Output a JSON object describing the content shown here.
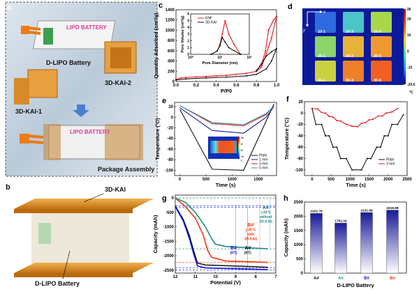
{
  "panels": {
    "a": {
      "letter": "a",
      "battery_label": "LIPO BATTERY",
      "battery_label_2": "LIPO BATTERY",
      "d_lipo": "D-LIPO Battery",
      "kai1": "3D-KAI-1",
      "kai2": "3D-KAI-2",
      "package": "Package Assembly"
    },
    "b": {
      "letter": "b",
      "kai": "3D-KAI",
      "d_lipo": "D-LIPO Battery"
    },
    "c": {
      "letter": "c"
    },
    "d": {
      "letter": "d",
      "axis_x": "x",
      "axis_y": "y",
      "samples": [
        {
          "label": "10-1",
          "color": "#2f6be0"
        },
        {
          "label": "10-3",
          "color": "#4cc4c8"
        },
        {
          "label": "10-5",
          "color": "#a8d84a"
        },
        {
          "label": "20-1",
          "color": "#8cd46a"
        },
        {
          "label": "20-3",
          "color": "#e6b23a"
        },
        {
          "label": "20-5",
          "color": "#ef9a30"
        },
        {
          "label": "30-1",
          "color": "#c9d23e"
        },
        {
          "label": "30-3",
          "color": "#f08028"
        },
        {
          "label": "30-5",
          "color": "#f06020"
        }
      ],
      "colorbar_ticks": [
        "26",
        "20",
        "10",
        "0",
        "-10",
        "-20.5"
      ],
      "colorbar_unit": "°C"
    },
    "e": {
      "letter": "e",
      "inset_ticks": [
        "-55",
        "30",
        "25",
        "-19"
      ],
      "inset_unit": "°C"
    },
    "f": {
      "letter": "f"
    },
    "g": {
      "letter": "g"
    },
    "h": {
      "letter": "h"
    }
  },
  "chart_data": [
    {
      "id": "c",
      "type": "line",
      "xlabel": "P/P0",
      "ylabel": "Quantity Adsorbed (cm³/g)",
      "xlim": [
        0,
        1.0
      ],
      "ylim": [
        0,
        1400
      ],
      "xticks": [
        "0.0",
        "0.2",
        "0.4",
        "0.6",
        "0.8",
        "1.0"
      ],
      "xtick_values": [
        0,
        0.2,
        0.4,
        0.6,
        0.8,
        1.0
      ],
      "yticks": [
        "0",
        "200",
        "400",
        "600",
        "800",
        "1000",
        "1200",
        "1400"
      ],
      "ytick_values": [
        0,
        200,
        400,
        600,
        800,
        1000,
        1200,
        1400
      ],
      "series": [
        {
          "color": "#e8141c",
          "points": [
            [
              0,
              40
            ],
            [
              0.05,
              70
            ],
            [
              0.1,
              80
            ],
            [
              0.2,
              90
            ],
            [
              0.3,
              100
            ],
            [
              0.4,
              110
            ],
            [
              0.5,
              120
            ],
            [
              0.6,
              140
            ],
            [
              0.7,
              160
            ],
            [
              0.8,
              200
            ],
            [
              0.85,
              280
            ],
            [
              0.9,
              550
            ],
            [
              0.95,
              850
            ],
            [
              1.0,
              1270
            ]
          ]
        },
        {
          "color": "#e8141c",
          "points": [
            [
              1.0,
              1270
            ],
            [
              0.97,
              1200
            ],
            [
              0.92,
              1000
            ],
            [
              0.89,
              600
            ],
            [
              0.85,
              320
            ],
            [
              0.8,
              220
            ]
          ]
        },
        {
          "color": "#111111",
          "points": [
            [
              0,
              30
            ],
            [
              0.1,
              50
            ],
            [
              0.3,
              70
            ],
            [
              0.5,
              85
            ],
            [
              0.7,
              110
            ],
            [
              0.8,
              140
            ],
            [
              0.9,
              250
            ],
            [
              0.95,
              400
            ],
            [
              1.0,
              640
            ]
          ]
        },
        {
          "color": "#111111",
          "points": [
            [
              1.0,
              640
            ],
            [
              0.95,
              580
            ],
            [
              0.9,
              500
            ],
            [
              0.85,
              350
            ],
            [
              0.8,
              200
            ]
          ]
        }
      ],
      "inset": {
        "type": "line",
        "xlabel": "Pore Diameter (nm)",
        "ylabel": "Pore Volume (cm³/g)",
        "xscale": "log",
        "xlim": [
          1,
          100
        ],
        "ylim": [
          0,
          6
        ],
        "xticks": [
          "10⁰",
          "10¹",
          "10²"
        ],
        "xtick_values": [
          1,
          10,
          100
        ],
        "yticks": [
          "0",
          "1",
          "2",
          "3",
          "4",
          "5",
          "6"
        ],
        "ytick_values": [
          0,
          1,
          2,
          3,
          4,
          5,
          6
        ],
        "legend": "top-left",
        "series": [
          {
            "name": "KNF",
            "color": "#e8141c",
            "points": [
              [
                5,
                0
              ],
              [
                8,
                0.5
              ],
              [
                10,
                1.5
              ],
              [
                12,
                3
              ],
              [
                15,
                5
              ],
              [
                20,
                3
              ],
              [
                30,
                1.5
              ],
              [
                50,
                0
              ]
            ]
          },
          {
            "name": "3D-KAI",
            "color": "#111111",
            "points": [
              [
                5,
                0
              ],
              [
                8,
                0.5
              ],
              [
                10,
                1.3
              ],
              [
                12,
                2.5
              ],
              [
                15,
                1.8
              ],
              [
                20,
                1
              ],
              [
                50,
                0
              ]
            ]
          }
        ]
      }
    },
    {
      "id": "e",
      "type": "line",
      "xlabel": "Time (s)",
      "ylabel": "Temperature (°C)",
      "xlim": [
        -100,
        1850
      ],
      "ylim": [
        -110,
        28
      ],
      "xticks": [
        "0",
        "500",
        "1000",
        "1500"
      ],
      "xtick_values": [
        0,
        500,
        1000,
        1500
      ],
      "yticks": [
        "20",
        "0",
        "-20",
        "-40",
        "-60",
        "-80",
        "-100"
      ],
      "ytick_values": [
        20,
        0,
        -20,
        -40,
        -60,
        -80,
        -100
      ],
      "legend": "bottom-right",
      "series": [
        {
          "name": "Plate",
          "color": "#111111",
          "points": [
            [
              0,
              15
            ],
            [
              620,
              -98
            ],
            [
              1220,
              -100
            ],
            [
              1800,
              25
            ]
          ]
        },
        {
          "name": "1 mm",
          "color": "#1a1aa8",
          "points": [
            [
              0,
              18
            ],
            [
              620,
              -25
            ],
            [
              1220,
              -30
            ],
            [
              1650,
              0
            ],
            [
              1800,
              20
            ]
          ]
        },
        {
          "name": "3 mm",
          "color": "#e8141c",
          "points": [
            [
              0,
              22
            ],
            [
              620,
              -12
            ],
            [
              1220,
              -16
            ],
            [
              1650,
              5
            ],
            [
              1800,
              22
            ]
          ]
        },
        {
          "name": "5 mm",
          "color": "#1f9a9a",
          "points": [
            [
              0,
              22
            ],
            [
              620,
              -10
            ],
            [
              1220,
              -14
            ],
            [
              1650,
              7
            ],
            [
              1800,
              20
            ]
          ]
        }
      ]
    },
    {
      "id": "f",
      "type": "line",
      "xlabel": "Time (s)",
      "ylabel": "Temperature (°C)",
      "xlim": [
        -200,
        2500
      ],
      "ylim": [
        -110,
        20
      ],
      "xticks": [
        "0",
        "500",
        "1000",
        "1500",
        "2000",
        "2500"
      ],
      "xtick_values": [
        0,
        500,
        1000,
        1500,
        2000,
        2500
      ],
      "yticks": [
        "20",
        "0",
        "-20",
        "-40",
        "-60",
        "-80",
        "-100"
      ],
      "ytick_values": [
        20,
        0,
        -20,
        -40,
        -60,
        -80,
        -100
      ],
      "legend": "bottom-right",
      "series": [
        {
          "name": "Plate",
          "color": "#111111",
          "points": [
            [
              0,
              8
            ],
            [
              100,
              -20
            ],
            [
              250,
              -20
            ],
            [
              350,
              -40
            ],
            [
              450,
              -40
            ],
            [
              550,
              -60
            ],
            [
              650,
              -60
            ],
            [
              750,
              -80
            ],
            [
              900,
              -80
            ],
            [
              1050,
              -100
            ],
            [
              1300,
              -100
            ],
            [
              1450,
              -80
            ],
            [
              1550,
              -80
            ],
            [
              1700,
              -60
            ],
            [
              1800,
              -60
            ],
            [
              1900,
              -40
            ],
            [
              2000,
              -40
            ],
            [
              2100,
              -20
            ],
            [
              2250,
              -20
            ],
            [
              2400,
              -3
            ]
          ]
        },
        {
          "name": "3 mm",
          "color": "#e8141c",
          "points": [
            [
              0,
              8
            ],
            [
              150,
              7
            ],
            [
              250,
              1
            ],
            [
              350,
              0
            ],
            [
              450,
              -6
            ],
            [
              550,
              -7
            ],
            [
              650,
              -13
            ],
            [
              750,
              -14
            ],
            [
              900,
              -20
            ],
            [
              1050,
              -23
            ],
            [
              1200,
              -24
            ],
            [
              1300,
              -18
            ],
            [
              1400,
              -17
            ],
            [
              1500,
              -12
            ],
            [
              1600,
              -11
            ],
            [
              1750,
              -5
            ],
            [
              1850,
              -5
            ],
            [
              1950,
              0
            ],
            [
              2100,
              2
            ],
            [
              2250,
              8
            ]
          ]
        }
      ]
    },
    {
      "id": "g",
      "type": "line",
      "xlabel": "Potential (V)",
      "ylabel": "Capacity (mAh)",
      "xlim": [
        12,
        7
      ],
      "ylim": [
        -2600,
        100
      ],
      "xticks": [
        "12",
        "11",
        "10",
        "9",
        "8",
        "7"
      ],
      "xtick_values": [
        12,
        11,
        10,
        9,
        8,
        7
      ],
      "yticks": [
        "0",
        "-500",
        "-1000",
        "-1500",
        "-2000",
        "-2500"
      ],
      "ytick_values": [
        0,
        -500,
        -1000,
        -1500,
        -2000,
        -2500
      ],
      "series": [
        {
          "color": "#111111",
          "points": [
            [
              12,
              -280
            ],
            [
              11.6,
              -750
            ],
            [
              11.3,
              -1300
            ],
            [
              11.1,
              -1800
            ],
            [
              10.9,
              -2250
            ],
            [
              10.5,
              -2320
            ],
            [
              8,
              -2380
            ],
            [
              7.4,
              -2400
            ]
          ]
        },
        {
          "color": "#1414e0",
          "points": [
            [
              12,
              -300
            ],
            [
              11.6,
              -800
            ],
            [
              11.3,
              -1400
            ],
            [
              11.1,
              -1900
            ],
            [
              10.9,
              -2350
            ],
            [
              10.5,
              -2420
            ],
            [
              8,
              -2470
            ],
            [
              7.4,
              -2480
            ]
          ]
        },
        {
          "color": "#ee3a10",
          "points": [
            [
              12,
              0
            ],
            [
              11.5,
              -300
            ],
            [
              11,
              -700
            ],
            [
              10.6,
              -1300
            ],
            [
              10.4,
              -1800
            ],
            [
              10.2,
              -2050
            ],
            [
              9.5,
              -2180
            ],
            [
              7.4,
              -2230
            ]
          ]
        },
        {
          "color": "#1f8a8a",
          "points": [
            [
              12,
              0
            ],
            [
              11.5,
              -150
            ],
            [
              11,
              -500
            ],
            [
              10.5,
              -1000
            ],
            [
              10.2,
              -1400
            ],
            [
              10,
              -1600
            ],
            [
              9.5,
              -1680
            ],
            [
              7.4,
              -1760
            ]
          ]
        }
      ],
      "reference_lines": [
        {
          "y": 0,
          "color": "#ee3a10"
        },
        {
          "y": 0,
          "color": "#1f8a8a"
        },
        {
          "y": -270,
          "color": "#1414e0"
        },
        {
          "y": -330,
          "color": "#1414e0"
        },
        {
          "y": -1760,
          "color": "#1f8a8a"
        },
        {
          "y": -2230,
          "color": "#ee3a10"
        },
        {
          "y": -2420,
          "color": "#1414e0"
        },
        {
          "y": -2490,
          "color": "#1414e0"
        }
      ],
      "annotations": [
        {
          "line1": "A#",
          "line2": "(-30°C",
          "line3": "without",
          "line4": "3D-KAI)",
          "color": "#1f8a8a",
          "x": 7.3
        },
        {
          "line1": "B#",
          "line2": "(-30°C",
          "line3": "with",
          "line4": "3D-KAI)",
          "color": "#ee3a10",
          "x": 7.8
        },
        {
          "line1": "B#",
          "line2": "(RT)",
          "color": "#1414e0",
          "x": 9.0
        },
        {
          "line1": "A#",
          "line2": "(RT)",
          "color": "#111111",
          "x": 8.4
        }
      ]
    },
    {
      "id": "h",
      "type": "bar",
      "xlabel": "D-LIPO Battery",
      "ylabel": "Capacity (mAh)",
      "ylim": [
        0,
        2500
      ],
      "yticks": [
        "0",
        "500",
        "1000",
        "1500",
        "2000",
        "2500"
      ],
      "ytick_values": [
        0,
        500,
        1000,
        1500,
        2000,
        2500
      ],
      "categories": [
        "A#",
        "A#",
        "B#",
        "B#"
      ],
      "category_colors": [
        "#111111",
        "#1f9a9a",
        "#1414e0",
        "#ee3a10"
      ],
      "values": [
        2102.78,
        1761.19,
        2131.69,
        2216.98
      ],
      "value_labels": [
        "2102.78",
        "1761.19",
        "2131.69",
        "2216.98"
      ],
      "bar_color": "#1a1a9a"
    }
  ]
}
